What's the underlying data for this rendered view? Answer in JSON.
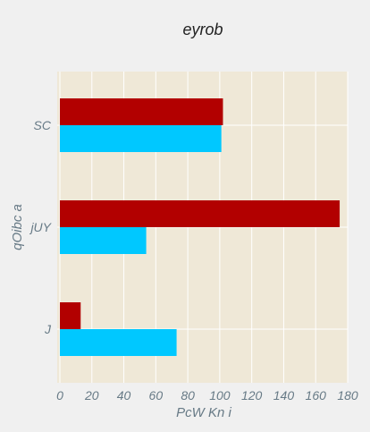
{
  "chart_data": {
    "type": "bar",
    "orientation": "horizontal",
    "title": "eyrob",
    "xlabel": "PcW Kn i",
    "ylabel": "qOibc a",
    "categories": [
      "J",
      "jUY",
      "SC"
    ],
    "series": [
      {
        "values": [
          73,
          54,
          101
        ],
        "color": "#00c8ff"
      },
      {
        "values": [
          13,
          175,
          102
        ],
        "color": "#b20000"
      }
    ],
    "xlim": [
      0,
      180
    ],
    "xticks": [
      0,
      20,
      40,
      60,
      80,
      100,
      120,
      140,
      160,
      180
    ],
    "grid": true,
    "legend": false,
    "colors": {
      "background": "#f0f0f0",
      "plot_background": "#efe8d7",
      "grid": "#ffffff",
      "tick_text": "#677a86"
    }
  }
}
